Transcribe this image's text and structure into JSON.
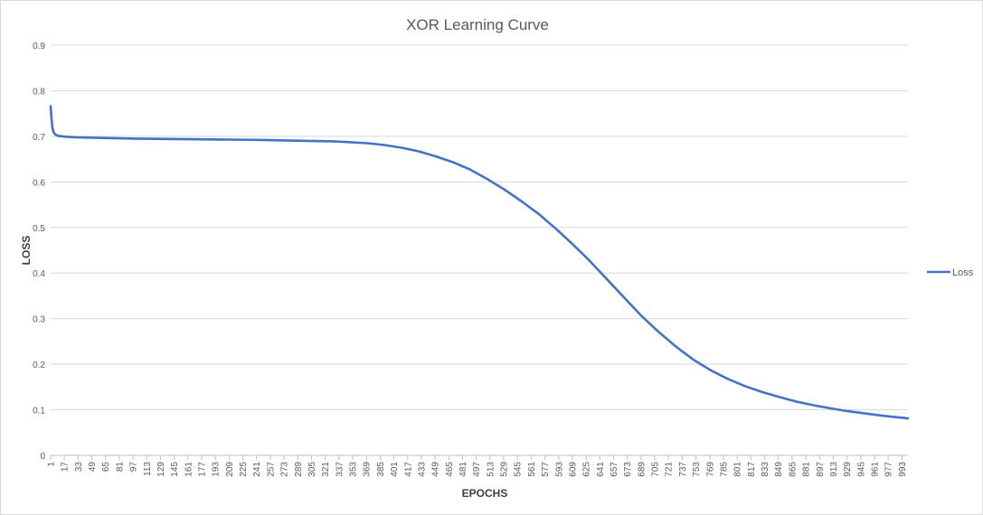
{
  "chart_data": {
    "type": "line",
    "title": "XOR Learning Curve",
    "xlabel": "EPOCHS",
    "ylabel": "LOSS",
    "ylim": [
      0,
      0.9
    ],
    "yticks": [
      "0",
      "0.1",
      "0.2",
      "0.3",
      "0.4",
      "0.5",
      "0.6",
      "0.7",
      "0.8",
      "0.9"
    ],
    "xlim": [
      1,
      1000
    ],
    "xticks": [
      "1",
      "17",
      "33",
      "49",
      "65",
      "81",
      "97",
      "113",
      "129",
      "145",
      "161",
      "177",
      "193",
      "209",
      "225",
      "241",
      "257",
      "273",
      "289",
      "305",
      "321",
      "337",
      "353",
      "369",
      "385",
      "401",
      "417",
      "433",
      "449",
      "465",
      "481",
      "497",
      "513",
      "529",
      "545",
      "561",
      "577",
      "593",
      "609",
      "625",
      "641",
      "657",
      "673",
      "689",
      "705",
      "721",
      "737",
      "753",
      "769",
      "785",
      "801",
      "817",
      "833",
      "849",
      "865",
      "881",
      "897",
      "913",
      "929",
      "945",
      "961",
      "977",
      "993"
    ],
    "grid": "horizontal",
    "legend_position": "right",
    "series": [
      {
        "name": "Loss",
        "color": "#4472c4",
        "x": [
          1,
          2,
          3,
          4,
          5,
          7,
          10,
          15,
          20,
          30,
          50,
          75,
          100,
          150,
          200,
          250,
          300,
          330,
          350,
          370,
          390,
          410,
          430,
          450,
          470,
          490,
          510,
          530,
          550,
          570,
          590,
          610,
          630,
          650,
          670,
          690,
          710,
          730,
          750,
          770,
          790,
          810,
          830,
          850,
          870,
          890,
          910,
          930,
          950,
          970,
          990,
          1000
        ],
        "y": [
          0.766,
          0.74,
          0.72,
          0.712,
          0.707,
          0.703,
          0.701,
          0.7,
          0.699,
          0.698,
          0.697,
          0.696,
          0.695,
          0.694,
          0.693,
          0.692,
          0.69,
          0.689,
          0.687,
          0.685,
          0.681,
          0.675,
          0.667,
          0.656,
          0.643,
          0.627,
          0.606,
          0.583,
          0.557,
          0.529,
          0.497,
          0.462,
          0.425,
          0.385,
          0.345,
          0.305,
          0.27,
          0.238,
          0.21,
          0.187,
          0.168,
          0.152,
          0.139,
          0.128,
          0.118,
          0.11,
          0.103,
          0.097,
          0.092,
          0.087,
          0.083,
          0.081
        ]
      }
    ]
  }
}
